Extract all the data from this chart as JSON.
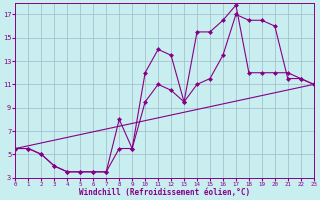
{
  "bg_color": "#c8eef0",
  "line_color": "#880088",
  "grid_color": "#a0b8c8",
  "xlabel": "Windchill (Refroidissement éolien,°C)",
  "xlim": [
    0,
    23
  ],
  "ylim": [
    3,
    18
  ],
  "xticks": [
    0,
    1,
    2,
    3,
    4,
    5,
    6,
    7,
    8,
    9,
    10,
    11,
    12,
    13,
    14,
    15,
    16,
    17,
    18,
    19,
    20,
    21,
    22,
    23
  ],
  "yticks": [
    3,
    5,
    7,
    9,
    11,
    13,
    15,
    17
  ],
  "line1_x": [
    0,
    1,
    2,
    3,
    4,
    5,
    6,
    7,
    8,
    9,
    10,
    11,
    12,
    13,
    14,
    15,
    16,
    17,
    18,
    19,
    20,
    21,
    22,
    23
  ],
  "line1_y": [
    5.5,
    5.5,
    5.0,
    4.0,
    3.5,
    3.5,
    3.5,
    3.5,
    8.0,
    5.5,
    12.0,
    14.0,
    13.5,
    9.5,
    15.5,
    15.5,
    16.5,
    17.8,
    12.0,
    12.0,
    12.0,
    12.0,
    11.5,
    11.0
  ],
  "line2_x": [
    0,
    1,
    2,
    3,
    4,
    5,
    6,
    7,
    8,
    9,
    10,
    11,
    12,
    13,
    14,
    15,
    16,
    17,
    18,
    19,
    20,
    21,
    22,
    23
  ],
  "line2_y": [
    5.5,
    5.5,
    5.0,
    4.0,
    3.5,
    3.5,
    3.5,
    3.5,
    5.5,
    5.5,
    9.5,
    11.0,
    10.5,
    9.5,
    11.0,
    11.5,
    13.5,
    17.0,
    16.5,
    16.5,
    16.0,
    11.5,
    11.5,
    11.0
  ],
  "line3_x": [
    0,
    23
  ],
  "line3_y": [
    5.5,
    11.0
  ],
  "markersize": 2.5,
  "linewidth": 0.8
}
